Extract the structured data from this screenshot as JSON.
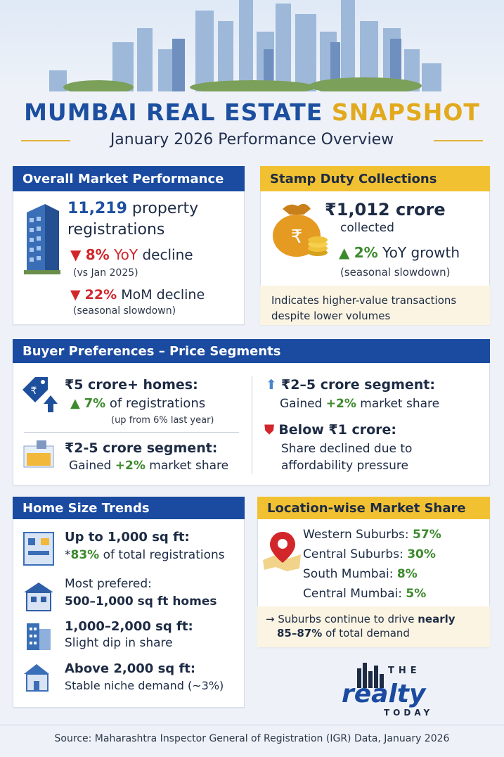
{
  "header": {
    "title_main": "MUMBAI REAL ESTATE",
    "title_accent": "SNAPSHOT",
    "subtitle": "January 2026 Performance Overview"
  },
  "overall": {
    "heading": "Overall Market Performance",
    "registrations_value": "11,219",
    "registrations_label": "property",
    "registrations_label2": "registrations",
    "yoy_value": "8%",
    "yoy_unit": "YoY",
    "yoy_text": "decline",
    "yoy_note": "(vs Jan 2025)",
    "mom_value": "22%",
    "mom_text": "MoM decline",
    "mom_note": "(seasonal slowdown)"
  },
  "stamp": {
    "heading": "Stamp Duty Collections",
    "amount": "₹1,012 crore",
    "collected": "collected",
    "growth_value": "2%",
    "growth_text": "YoY growth",
    "growth_note": "(seasonal slowdown)",
    "indicator_line1": "Indicates higher-value transactions",
    "indicator_line2": "despite lower volumes"
  },
  "buyer": {
    "heading": "Buyer Preferences – Price Segments",
    "seg1_title": "₹5 crore+ homes:",
    "seg1_value": "7%",
    "seg1_text": "of registrations",
    "seg1_note": "(up from 6% last year)",
    "seg2_title": "₹2-5 crore segment:",
    "seg2_prefix": "Gained",
    "seg2_value": "+2%",
    "seg2_text": "market share",
    "seg3_title": "₹2–5 crore segment:",
    "seg3_prefix": "Gained",
    "seg3_value": "+2%",
    "seg3_text": "market share",
    "seg4_title": "Below ₹1 crore:",
    "seg4_line1": "Share declined due to",
    "seg4_line2": "affordability pressure"
  },
  "size": {
    "heading": "Home Size Trends",
    "s1_title": "Up to 1,000 sq ft:",
    "s1_prefix": "*",
    "s1_value": "83%",
    "s1_text": "of total registrations",
    "s2_title": "Most prefered:",
    "s2_text": "500–1,000 sq ft homes",
    "s3_title": "1,000–2,000 sq ft:",
    "s3_text": "Slight dip in share",
    "s4_title": "Above 2,000 sq ft:",
    "s4_text": "Stable niche demand (~3%)"
  },
  "location": {
    "heading": "Location-wise Market Share",
    "items": [
      {
        "name": "Western Suburbs:",
        "value": "57%"
      },
      {
        "name": "Central Suburbs:",
        "value": "30%"
      },
      {
        "name": "South Mumbai:",
        "value": "8%"
      },
      {
        "name": "Central Mumbai:",
        "value": "5%"
      }
    ],
    "note_prefix": "Suburbs continue to drive",
    "note_strong": "nearly",
    "note_line2": "85–87%",
    "note_line2_rest": "of total demand"
  },
  "brand": {
    "the": "THE",
    "realty": "realty",
    "today": "TODAY"
  },
  "footer": {
    "source": "Source: Maharashtra Inspector General of Registration (IGR) Data, January 2026"
  },
  "colors": {
    "blue": "#1b4ba0",
    "gold": "#f1c132",
    "red": "#d2262b",
    "green": "#3d8a2d"
  }
}
